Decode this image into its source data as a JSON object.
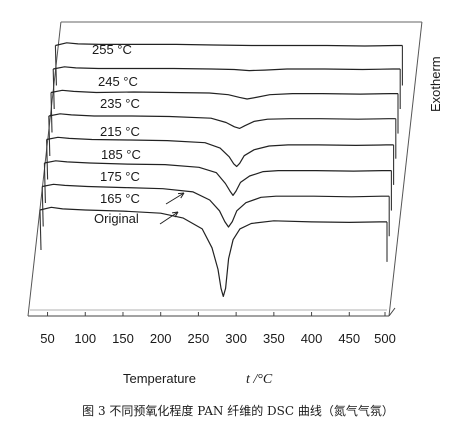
{
  "figure_caption": "图 3   不同预氧化程度 PAN 纤维的 DSC 曲线（氮气气氛）",
  "chart_data": {
    "type": "line",
    "style": "stacked-offset (pseudo-3D waterfall)",
    "xlabel": "Temperature",
    "xunit": "t /°C",
    "ylabel": "Exotherm",
    "xlim": [
      40,
      500
    ],
    "xticks": [
      50,
      100,
      150,
      200,
      250,
      300,
      350,
      400,
      450,
      500
    ],
    "grid": false,
    "series": [
      {
        "name": "Original",
        "peak_temp": 283,
        "x": [
          40,
          55,
          70,
          100,
          150,
          200,
          230,
          255,
          268,
          276,
          280,
          283,
          286,
          290,
          296,
          305,
          320,
          350,
          400,
          450,
          490,
          500
        ],
        "y": [
          0.0,
          0.5,
          0.2,
          0.0,
          -0.2,
          -0.6,
          -1.5,
          -3.5,
          -7.0,
          -11.0,
          -14.5,
          -16.0,
          -14.5,
          -9.0,
          -5.5,
          -3.5,
          -2.5,
          -2.0,
          -2.2,
          -2.3,
          -2.2,
          -2.2
        ]
      },
      {
        "name": "165 °C",
        "peak_temp": 287,
        "x": [
          40,
          55,
          70,
          100,
          150,
          200,
          240,
          262,
          275,
          282,
          287,
          292,
          298,
          310,
          330,
          350,
          400,
          450,
          490,
          500
        ],
        "y": [
          0.0,
          0.4,
          0.2,
          0.0,
          -0.2,
          -0.4,
          -1.0,
          -2.5,
          -4.5,
          -6.5,
          -7.5,
          -6.5,
          -4.5,
          -3.0,
          -2.0,
          -1.8,
          -1.8,
          -1.9,
          -1.8,
          -1.8
        ]
      },
      {
        "name": "175 °C",
        "peak_temp": 290,
        "x": [
          40,
          55,
          70,
          100,
          150,
          200,
          245,
          268,
          280,
          286,
          290,
          294,
          300,
          312,
          330,
          350,
          400,
          450,
          490,
          500
        ],
        "y": [
          0.0,
          0.4,
          0.2,
          0.0,
          -0.2,
          -0.3,
          -0.8,
          -1.8,
          -3.8,
          -5.2,
          -6.0,
          -5.2,
          -3.6,
          -2.4,
          -1.6,
          -1.4,
          -1.4,
          -1.5,
          -1.4,
          -1.4
        ]
      },
      {
        "name": "185 °C",
        "peak_temp": 292,
        "x": [
          40,
          55,
          70,
          100,
          150,
          200,
          250,
          270,
          282,
          288,
          292,
          296,
          302,
          315,
          335,
          360,
          400,
          450,
          490,
          500
        ],
        "y": [
          0.0,
          0.4,
          0.2,
          0.0,
          -0.1,
          -0.2,
          -0.6,
          -1.6,
          -3.2,
          -4.5,
          -5.0,
          -4.4,
          -3.0,
          -1.9,
          -1.2,
          -1.0,
          -1.0,
          -1.1,
          -1.0,
          -1.0
        ]
      },
      {
        "name": "215 °C",
        "peak_temp": 293,
        "x": [
          40,
          55,
          70,
          100,
          150,
          200,
          255,
          275,
          286,
          293,
          300,
          312,
          330,
          360,
          400,
          450,
          490,
          500
        ],
        "y": [
          0.0,
          0.4,
          0.2,
          0.0,
          0.0,
          -0.1,
          -0.4,
          -1.2,
          -2.0,
          -2.3,
          -1.8,
          -1.0,
          -0.6,
          -0.5,
          -0.5,
          -0.6,
          -0.5,
          -0.5
        ]
      },
      {
        "name": "235 °C",
        "peak_temp": 300,
        "x": [
          40,
          55,
          70,
          100,
          150,
          200,
          250,
          275,
          290,
          300,
          312,
          330,
          360,
          400,
          450,
          490,
          500
        ],
        "y": [
          0.0,
          0.4,
          0.2,
          0.0,
          0.1,
          0.0,
          -0.1,
          -0.4,
          -0.9,
          -1.2,
          -0.9,
          -0.4,
          -0.2,
          -0.2,
          -0.3,
          -0.2,
          -0.2
        ]
      },
      {
        "name": "245 °C",
        "peak_temp": 300,
        "x": [
          40,
          55,
          70,
          100,
          150,
          200,
          250,
          280,
          300,
          320,
          350,
          400,
          450,
          490,
          500
        ],
        "y": [
          0.0,
          0.4,
          0.2,
          0.1,
          0.1,
          0.1,
          0.0,
          -0.1,
          -0.3,
          -0.2,
          0.0,
          0.0,
          -0.1,
          0.0,
          0.0
        ]
      },
      {
        "name": "255 °C",
        "peak_temp": null,
        "x": [
          40,
          55,
          70,
          100,
          150,
          200,
          250,
          300,
          350,
          400,
          450,
          490,
          500
        ],
        "y": [
          0.0,
          0.5,
          0.3,
          0.2,
          0.2,
          0.2,
          0.1,
          0.0,
          0.0,
          0.0,
          -0.1,
          0.0,
          0.0
        ]
      }
    ]
  }
}
